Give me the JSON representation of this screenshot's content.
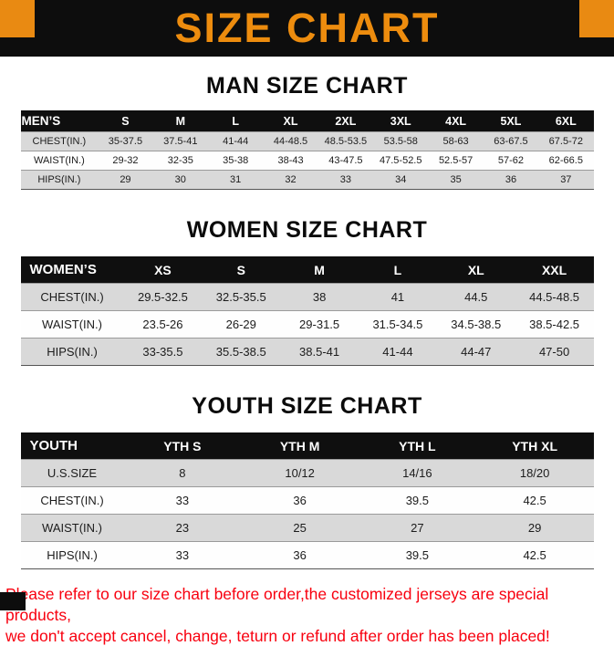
{
  "page": {
    "title": "SIZE CHART",
    "disclaimer_line1": "Please refer to our size chart before order,the customized jerseys are special products,",
    "disclaimer_line2": "we don't accept cancel, change, teturn or refund after order has been placed!"
  },
  "colors": {
    "banner_background": "#0d0d0d",
    "accent_orange": "#ed8c0e",
    "corner_orange": "#e98a12",
    "table_header_black": "#0f0f0f",
    "row_gray": "#d9d9d9",
    "disclaimer_red": "#f8000f"
  },
  "sections": [
    {
      "heading": "MAN SIZE CHART",
      "table": {
        "header": [
          "MEN’S",
          "S",
          "M",
          "L",
          "XL",
          "2XL",
          "3XL",
          "4XL",
          "5XL",
          "6XL"
        ],
        "rows": [
          {
            "label": "CHEST(IN.)",
            "values": [
              "35-37.5",
              "37.5-41",
              "41-44",
              "44-48.5",
              "48.5-53.5",
              "53.5-58",
              "58-63",
              "63-67.5",
              "67.5-72"
            ]
          },
          {
            "label": "WAIST(IN.)",
            "values": [
              "29-32",
              "32-35",
              "35-38",
              "38-43",
              "43-47.5",
              "47.5-52.5",
              "52.5-57",
              "57-62",
              "62-66.5"
            ]
          },
          {
            "label": "HIPS(IN.)",
            "values": [
              "29",
              "30",
              "31",
              "32",
              "33",
              "34",
              "35",
              "36",
              "37"
            ]
          }
        ]
      }
    },
    {
      "heading": "WOMEN SIZE CHART",
      "table": {
        "header": [
          "WOMEN’S",
          "XS",
          "S",
          "M",
          "L",
          "XL",
          "XXL"
        ],
        "rows": [
          {
            "label": "CHEST(IN.)",
            "values": [
              "29.5-32.5",
              "32.5-35.5",
              "38",
              "41",
              "44.5",
              "44.5-48.5"
            ]
          },
          {
            "label": "WAIST(IN.)",
            "values": [
              "23.5-26",
              "26-29",
              "29-31.5",
              "31.5-34.5",
              "34.5-38.5",
              "38.5-42.5"
            ]
          },
          {
            "label": "HIPS(IN.)",
            "values": [
              "33-35.5",
              "35.5-38.5",
              "38.5-41",
              "41-44",
              "44-47",
              "47-50"
            ]
          }
        ]
      }
    },
    {
      "heading": "YOUTH SIZE CHART",
      "table": {
        "header": [
          "YOUTH",
          "YTH S",
          "YTH M",
          "YTH L",
          "YTH XL"
        ],
        "rows": [
          {
            "label": "U.S.SIZE",
            "values": [
              "8",
              "10/12",
              "14/16",
              "18/20"
            ]
          },
          {
            "label": "CHEST(IN.)",
            "values": [
              "33",
              "36",
              "39.5",
              "42.5"
            ]
          },
          {
            "label": "WAIST(IN.)",
            "values": [
              "23",
              "25",
              "27",
              "29"
            ]
          },
          {
            "label": "HIPS(IN.)",
            "values": [
              "33",
              "36",
              "39.5",
              "42.5"
            ]
          }
        ]
      }
    }
  ]
}
